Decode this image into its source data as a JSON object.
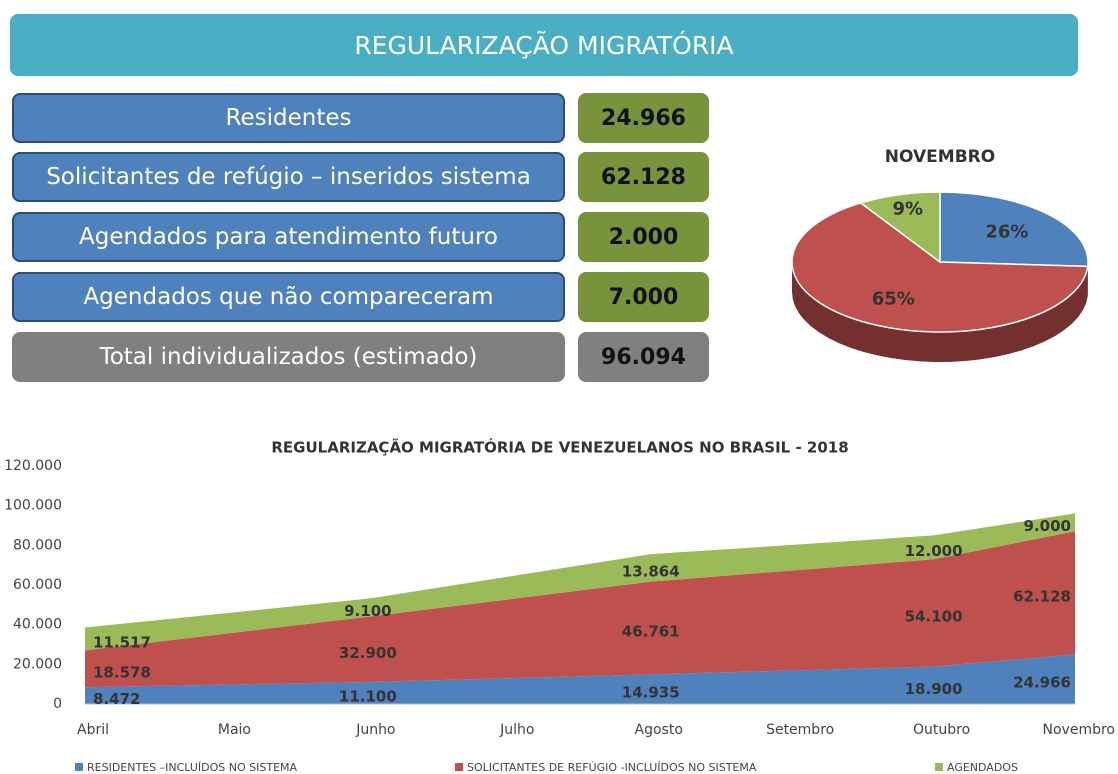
{
  "header": {
    "title": "REGULARIZAÇÃO MIGRATÓRIA"
  },
  "stats": [
    {
      "label": "Residentes",
      "value": "24.966"
    },
    {
      "label": "Solicitantes de refúgio – inseridos sistema",
      "value": "62.128"
    },
    {
      "label": "Agendados para atendimento futuro",
      "value": "2.000"
    },
    {
      "label": "Agendados que não compareceram",
      "value": "7.000"
    },
    {
      "label": "Total individualizados (estimado)",
      "value": "96.094"
    }
  ],
  "chart_data": [
    {
      "type": "pie",
      "title": "NOVEMBRO",
      "values": [
        26,
        65,
        9
      ],
      "value_labels": [
        "26%",
        "65%",
        "9%"
      ],
      "colors": [
        "#4f81bd",
        "#c0504d",
        "#9bbb59"
      ]
    },
    {
      "type": "area",
      "stacked": true,
      "title": "REGULARIZAÇÃO MIGRATÓRIA DE VENEZUELANOS NO BRASIL - 2018",
      "categories": [
        "Abril",
        "Maio",
        "Junho",
        "Julho",
        "Agosto",
        "Setembro",
        "Outubro",
        "Novembro"
      ],
      "series": [
        {
          "name": "RESIDENTES –INCLUÍDOS NO SISTEMA",
          "color": "#4f81bd",
          "values": [
            8472,
            9800,
            11100,
            13000,
            14935,
            16900,
            18900,
            24966
          ],
          "value_labels": [
            "8.472",
            null,
            "11.100",
            null,
            "14.935",
            null,
            "18.900",
            "24.966"
          ]
        },
        {
          "name": "SOLICITANTES DE REFÚGIO -INCLUÍDOS NO SISTEMA",
          "color": "#c0504d",
          "values": [
            18578,
            25700,
            32900,
            39800,
            46761,
            50400,
            54100,
            62128
          ],
          "value_labels": [
            "18.578",
            null,
            "32.900",
            null,
            "46.761",
            null,
            "54.100",
            "62.128"
          ]
        },
        {
          "name": "AGENDADOS",
          "color": "#9bbb59",
          "values": [
            11517,
            10300,
            9100,
            11500,
            13864,
            12900,
            12000,
            9000
          ],
          "value_labels": [
            "11.517",
            null,
            "9.100",
            null,
            "13.864",
            null,
            "12.000",
            "9.000"
          ]
        }
      ],
      "ylim": [
        0,
        120000
      ],
      "yticks": [
        0,
        {
          "value": 20000,
          "label": "20.000"
        },
        {
          "value": 40000,
          "label": "40.000"
        },
        {
          "value": 60000,
          "label": "60.000"
        },
        {
          "value": 80000,
          "label": "80.000"
        },
        {
          "value": 100000,
          "label": "100.000"
        },
        {
          "value": 120000,
          "label": "120.000"
        }
      ],
      "legend": "bottom"
    }
  ]
}
